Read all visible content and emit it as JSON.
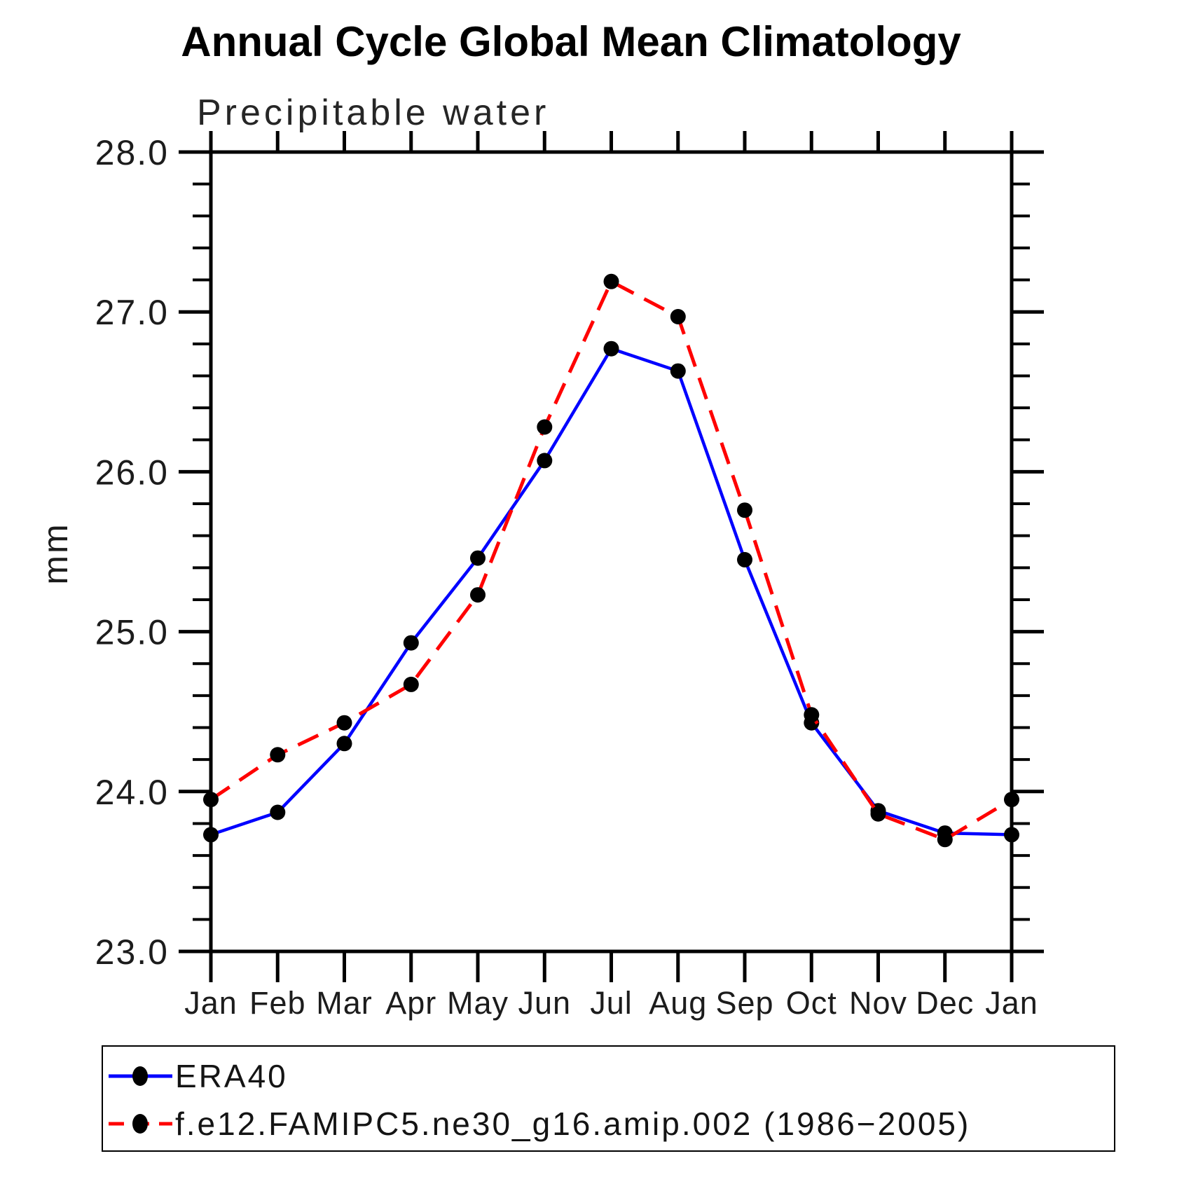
{
  "title": "Annual Cycle Global Mean Climatology",
  "subtitle": "Precipitable water",
  "ylabel": "mm",
  "chart_data": {
    "type": "line",
    "title": "Annual Cycle Global Mean Climatology",
    "subtitle": "Precipitable water",
    "xlabel": "",
    "ylabel": "mm",
    "categories": [
      "Jan",
      "Feb",
      "Mar",
      "Apr",
      "May",
      "Jun",
      "Jul",
      "Aug",
      "Sep",
      "Oct",
      "Nov",
      "Dec",
      "Jan"
    ],
    "ylim": [
      23.0,
      28.0
    ],
    "ytick_major": [
      "23.0",
      "24.0",
      "25.0",
      "26.0",
      "27.0",
      "28.0"
    ],
    "ytick_minor_step": 0.2,
    "grid": false,
    "legend_position": "bottom",
    "colors": {
      "era40": "#0000ff",
      "model": "#ff0000",
      "marker": "#000000",
      "axis": "#000000"
    },
    "series": [
      {
        "name": "ERA40",
        "color": "#0000ff",
        "style": "solid",
        "marker": "circle",
        "marker_color": "#000000",
        "values": [
          23.73,
          23.87,
          24.3,
          24.93,
          25.46,
          26.07,
          26.77,
          26.63,
          25.45,
          24.43,
          23.88,
          23.74,
          23.73
        ]
      },
      {
        "name": "f.e12.FAMIPC5.ne30_g16.amip.002 (1986−2005)",
        "color": "#ff0000",
        "style": "dashed",
        "marker": "circle",
        "marker_color": "#000000",
        "values": [
          23.95,
          24.23,
          24.43,
          24.67,
          25.23,
          26.28,
          27.19,
          26.97,
          25.76,
          24.48,
          23.86,
          23.7,
          23.95
        ]
      }
    ]
  }
}
